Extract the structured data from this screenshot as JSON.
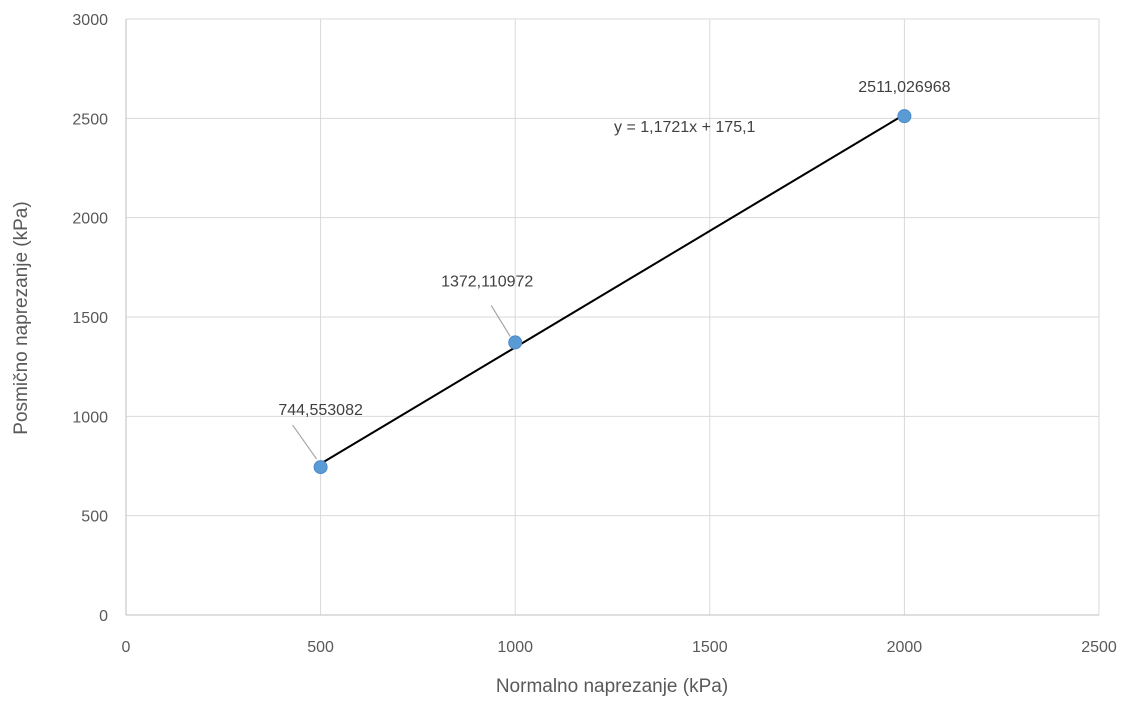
{
  "chart_data": {
    "type": "scatter",
    "title": "",
    "xlabel": "Normalno naprezanje (kPa)",
    "ylabel": "Posmično naprezanje (kPa)",
    "xlim": [
      0,
      2500
    ],
    "ylim": [
      0,
      3000
    ],
    "xticks": [
      0,
      500,
      1000,
      1500,
      2000,
      2500
    ],
    "yticks": [
      0,
      500,
      1000,
      1500,
      2000,
      2500,
      3000
    ],
    "grid": "vertical-and-horizontal",
    "legend": "none",
    "series": [
      {
        "marker_color": "#5B9BD5",
        "points": [
          {
            "x": 500,
            "y": 744.553082,
            "label": "744,553082"
          },
          {
            "x": 1000,
            "y": 1372.110972,
            "label": "1372,110972"
          },
          {
            "x": 2000,
            "y": 2511.026968,
            "label": "2511,026968"
          }
        ]
      }
    ],
    "trendline": {
      "type": "linear",
      "slope": 1.1721,
      "intercept": 175.1,
      "x_range": [
        500,
        2000
      ],
      "color": "#000000",
      "equation": "y = 1,1721x + 175,1"
    },
    "colors": {
      "grid": "#D9D9D9",
      "axis": "#BFBFBF",
      "text": "#595959",
      "leader": "#A6A6A6"
    }
  }
}
